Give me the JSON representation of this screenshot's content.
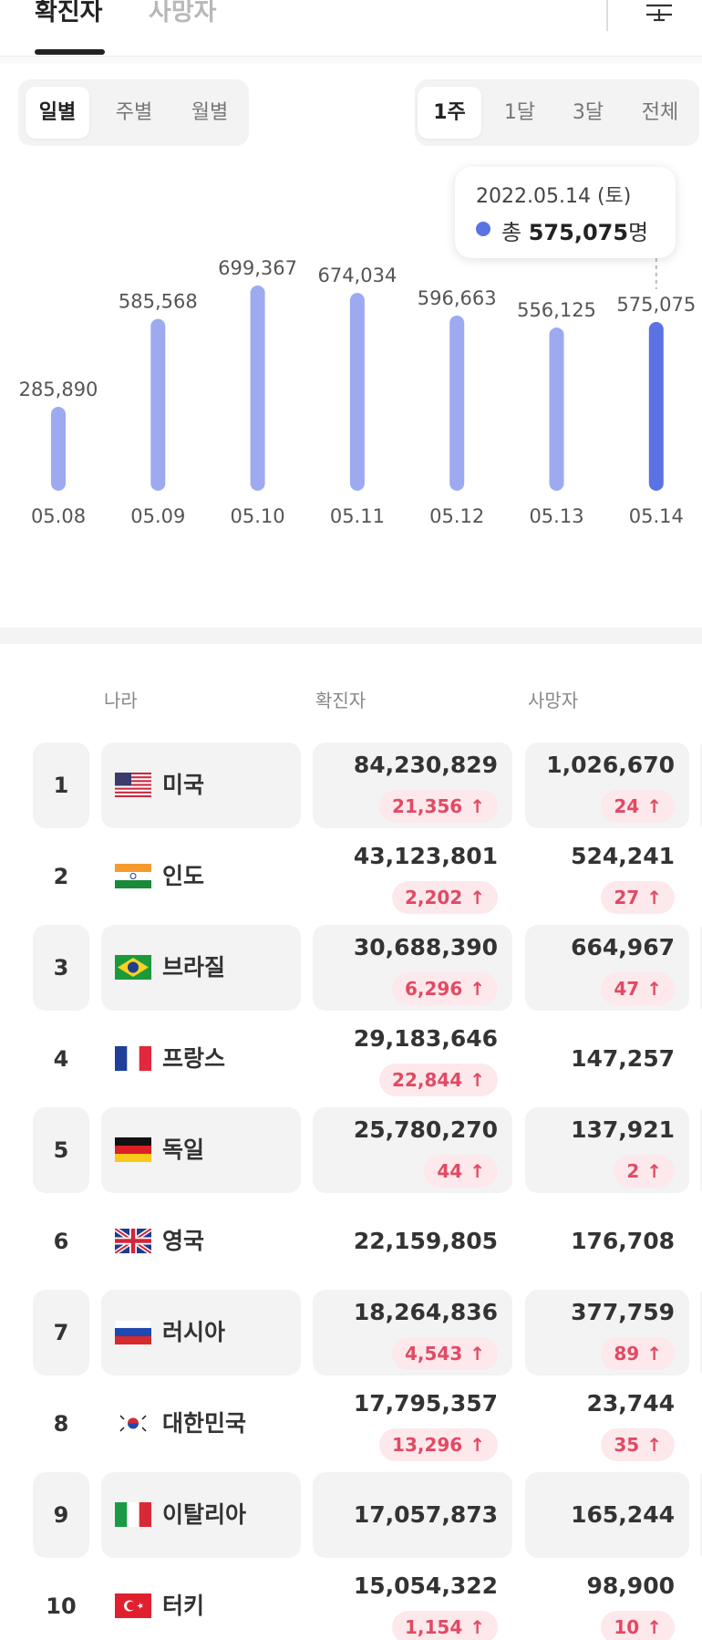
{
  "top_tabs": {
    "confirmed": "확진자",
    "deaths": "사망자"
  },
  "period_toggle": {
    "daily": "일별",
    "weekly": "주별",
    "monthly": "월별",
    "selected": "일별"
  },
  "range_toggle": {
    "w1": "1주",
    "m1": "1달",
    "m3": "3달",
    "all": "전체",
    "selected": "1주"
  },
  "tooltip": {
    "date": "2022.05.14 (토)",
    "prefix": "총",
    "value": "575,075",
    "suffix": "명"
  },
  "chart_data": {
    "type": "bar",
    "categories": [
      "05.08",
      "05.09",
      "05.10",
      "05.11",
      "05.12",
      "05.13",
      "05.14"
    ],
    "values": [
      285890,
      585568,
      699367,
      674034,
      596663,
      556125,
      575075
    ],
    "value_labels": [
      "285,890",
      "585,568",
      "699,367",
      "674,034",
      "596,663",
      "556,125",
      "575,075"
    ],
    "highlight_index": 6,
    "bar_color": "#9daaf0",
    "highlight_color": "#5a72e2"
  },
  "table": {
    "headers": {
      "country": "나라",
      "confirmed": "확진자",
      "deaths": "사망자"
    },
    "rows": [
      {
        "rank": "1",
        "flag": "us-flag-icon",
        "country": "미국",
        "confirmed": "84,230,829",
        "confirmed_delta": "21,356",
        "deaths": "1,026,670",
        "deaths_delta": "24"
      },
      {
        "rank": "2",
        "flag": "india-flag-icon",
        "country": "인도",
        "confirmed": "43,123,801",
        "confirmed_delta": "2,202",
        "deaths": "524,241",
        "deaths_delta": "27"
      },
      {
        "rank": "3",
        "flag": "brazil-flag-icon",
        "country": "브라질",
        "confirmed": "30,688,390",
        "confirmed_delta": "6,296",
        "deaths": "664,967",
        "deaths_delta": "47"
      },
      {
        "rank": "4",
        "flag": "france-flag-icon",
        "country": "프랑스",
        "confirmed": "29,183,646",
        "confirmed_delta": "22,844",
        "deaths": "147,257",
        "deaths_delta": ""
      },
      {
        "rank": "5",
        "flag": "germany-flag-icon",
        "country": "독일",
        "confirmed": "25,780,270",
        "confirmed_delta": "44",
        "deaths": "137,921",
        "deaths_delta": "2"
      },
      {
        "rank": "6",
        "flag": "uk-flag-icon",
        "country": "영국",
        "confirmed": "22,159,805",
        "confirmed_delta": "",
        "deaths": "176,708",
        "deaths_delta": ""
      },
      {
        "rank": "7",
        "flag": "russia-flag-icon",
        "country": "러시아",
        "confirmed": "18,264,836",
        "confirmed_delta": "4,543",
        "deaths": "377,759",
        "deaths_delta": "89"
      },
      {
        "rank": "8",
        "flag": "korea-flag-icon",
        "country": "대한민국",
        "confirmed": "17,795,357",
        "confirmed_delta": "13,296",
        "deaths": "23,744",
        "deaths_delta": "35"
      },
      {
        "rank": "9",
        "flag": "italy-flag-icon",
        "country": "이탈리아",
        "confirmed": "17,057,873",
        "confirmed_delta": "",
        "deaths": "165,244",
        "deaths_delta": ""
      },
      {
        "rank": "10",
        "flag": "turkey-flag-icon",
        "country": "터키",
        "confirmed": "15,054,322",
        "confirmed_delta": "1,154",
        "deaths": "98,900",
        "deaths_delta": "10"
      }
    ]
  },
  "colors": {
    "accent": "#5a72e2",
    "up_text": "#e14a64",
    "up_bg": "#fde8ec"
  },
  "arrow_glyph": "↑"
}
